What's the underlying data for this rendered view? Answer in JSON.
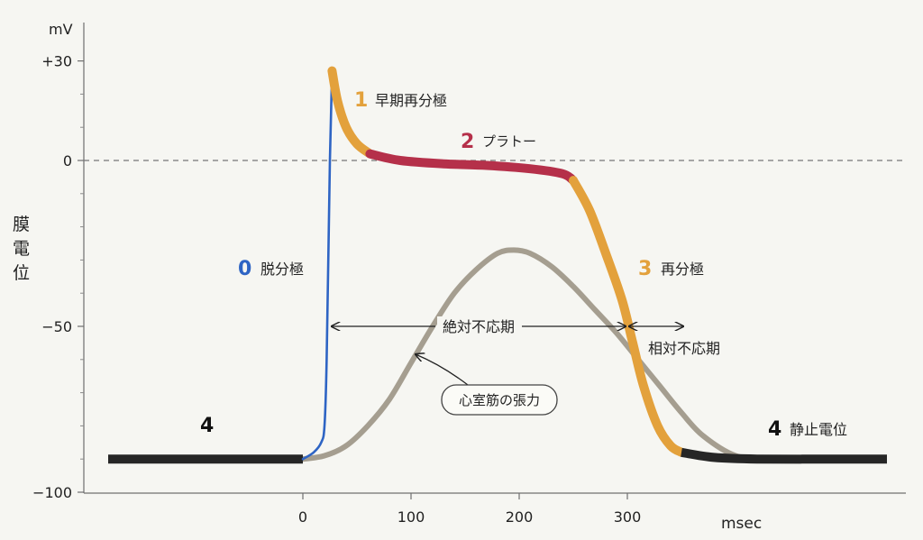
{
  "chart_data": {
    "type": "line",
    "ylabel": "膜電位",
    "yunit": "mV",
    "xunit": "msec",
    "ylim": [
      -100,
      30
    ],
    "xlim": [
      -180,
      540
    ],
    "yticks": [
      {
        "value": 30,
        "label": "+30"
      },
      {
        "value": 0,
        "label": "0"
      },
      {
        "value": -50,
        "label": "−50"
      },
      {
        "value": -100,
        "label": "−100"
      }
    ],
    "xticks": [
      {
        "value": 0,
        "label": "0"
      },
      {
        "value": 100,
        "label": "100"
      },
      {
        "value": 200,
        "label": "200"
      },
      {
        "value": 300,
        "label": "300"
      }
    ],
    "reference_line": {
      "y": 0,
      "style": "dashed"
    },
    "series": [
      {
        "name": "4",
        "label": "静止電位",
        "color": "#262626",
        "x": [
          -180,
          -100,
          0
        ],
        "y": [
          -90,
          -90,
          -90
        ]
      },
      {
        "name": "0",
        "label": "脱分極",
        "color": "#2e64c4",
        "x": [
          0,
          10,
          17,
          20,
          22,
          25,
          27
        ],
        "y": [
          -90,
          -88,
          -85,
          -80,
          -60,
          0,
          27
        ]
      },
      {
        "name": "1",
        "label": "早期再分極",
        "color": "#e3a13c",
        "x": [
          27,
          32,
          40,
          50,
          62
        ],
        "y": [
          27,
          18,
          10,
          5,
          2
        ]
      },
      {
        "name": "2",
        "label": "プラトー",
        "color": "#b5304a",
        "x": [
          62,
          90,
          130,
          170,
          210,
          240,
          250
        ],
        "y": [
          2,
          0,
          -1,
          -1.5,
          -2.5,
          -4,
          -6
        ]
      },
      {
        "name": "3",
        "label": "再分極",
        "color": "#e3a13c",
        "x": [
          250,
          265,
          280,
          295,
          305,
          315,
          328,
          340,
          350
        ],
        "y": [
          -6,
          -15,
          -28,
          -42,
          -55,
          -68,
          -80,
          -86,
          -88
        ]
      },
      {
        "name": "4",
        "label": "静止電位",
        "color": "#262626",
        "x": [
          350,
          380,
          420,
          500,
          540
        ],
        "y": [
          -88,
          -89.5,
          -90,
          -90,
          -90
        ]
      },
      {
        "name": "心室筋の張力",
        "color": "#a59e90",
        "x": [
          0,
          20,
          40,
          60,
          80,
          100,
          120,
          140,
          160,
          180,
          195,
          210,
          230,
          250,
          270,
          290,
          310,
          330,
          350,
          370,
          400,
          430
        ],
        "y": [
          -90,
          -89,
          -86,
          -80,
          -72,
          -61,
          -50,
          -40,
          -33,
          -28,
          -27,
          -28,
          -32,
          -38,
          -45,
          -52,
          -60,
          -68,
          -76,
          -83,
          -89,
          -90
        ]
      }
    ],
    "annotations": [
      {
        "text": "絶対不応期",
        "type": "double-arrow",
        "x_start": 25,
        "x_end": 300,
        "y": -50
      },
      {
        "text": "相対不応期",
        "type": "double-arrow",
        "x_start": 300,
        "x_end": 350,
        "y": -50
      },
      {
        "text": "心室筋の張力",
        "type": "callout",
        "points_to": {
          "x": 100,
          "y": -58
        }
      }
    ]
  },
  "labels": {
    "unit_mv": "mV",
    "unit_msec": "msec",
    "ylabel_chars": [
      "膜",
      "電",
      "位"
    ],
    "phase0_num": "0",
    "phase0_text": "脱分極",
    "phase1_num": "1",
    "phase1_text": "早期再分極",
    "phase2_num": "2",
    "phase2_text": "プラトー",
    "phase3_num": "3",
    "phase3_text": "再分極",
    "phase4_left_num": "4",
    "phase4_right_num": "4",
    "phase4_right_text": "静止電位",
    "absolute_refractory": "絶対不応期",
    "relative_refractory": "相対不応期",
    "tension_callout": "心室筋の張力"
  },
  "colors": {
    "depolarization": "#2e64c4",
    "repolarization": "#e3a13c",
    "plateau": "#b5304a",
    "resting": "#262626",
    "tension": "#a59e90"
  }
}
